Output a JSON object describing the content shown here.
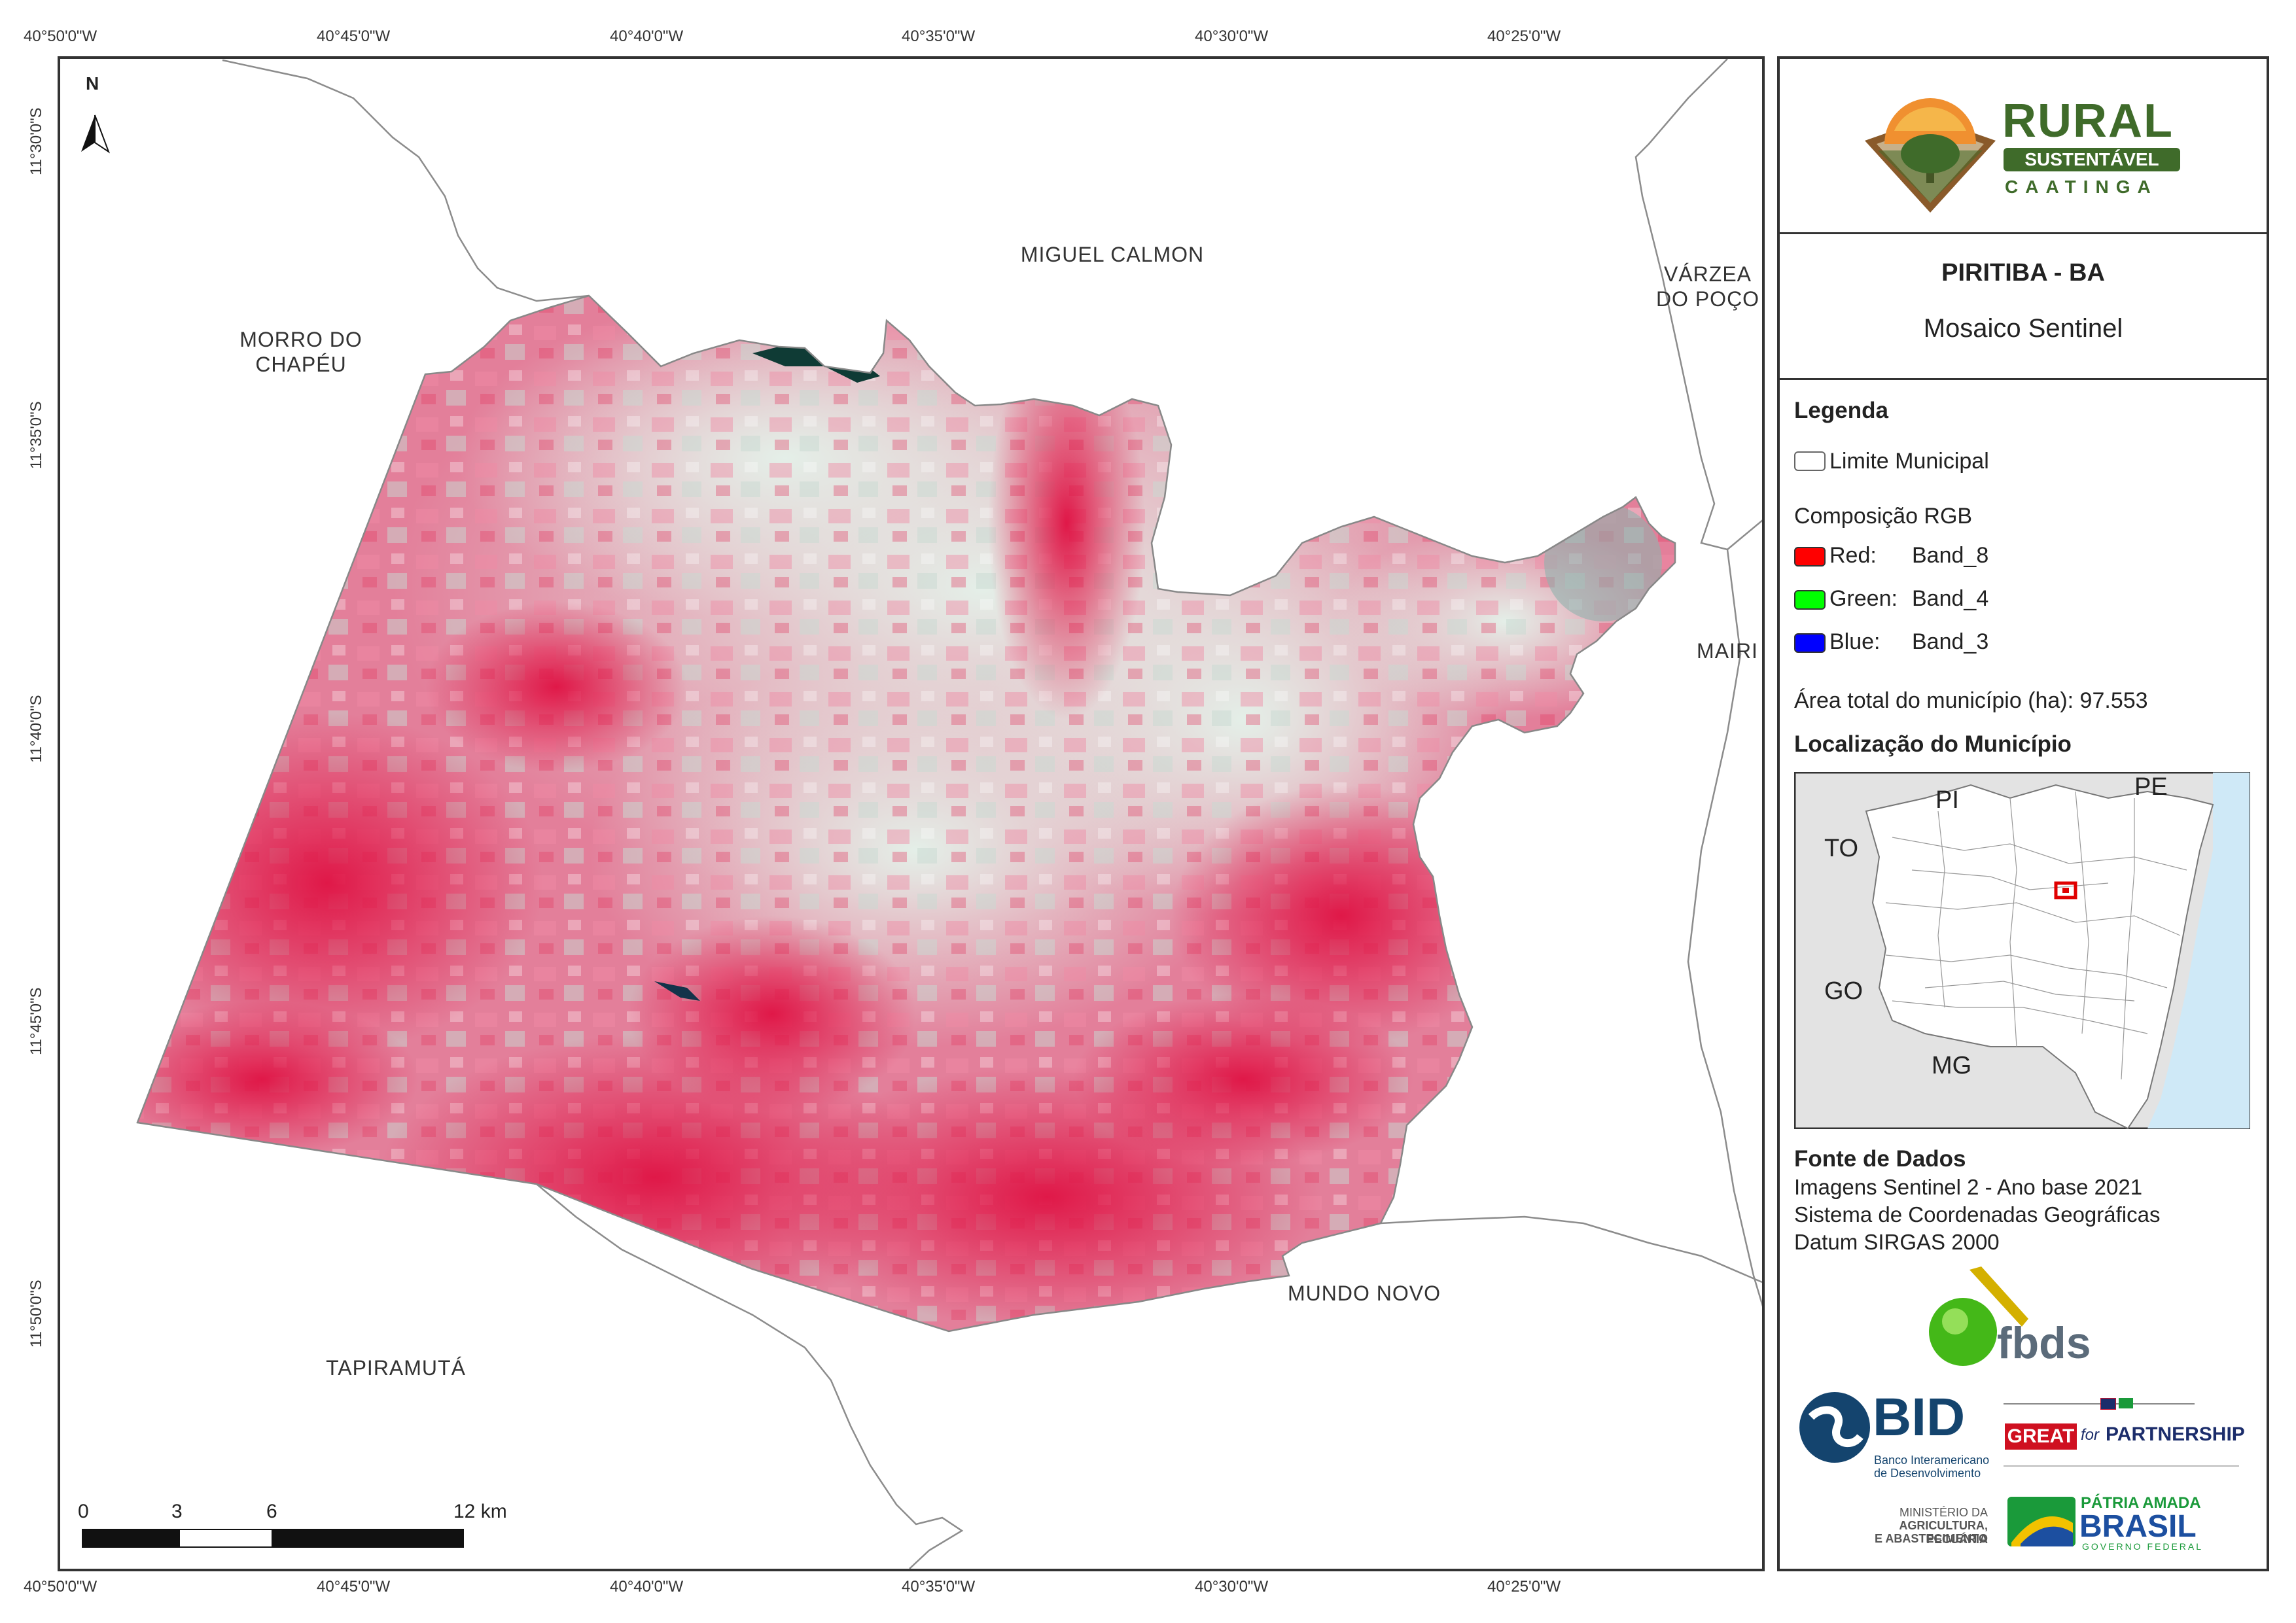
{
  "coords": {
    "top": [
      "40°50'0\"W",
      "40°45'0\"W",
      "40°40'0\"W",
      "40°35'0\"W",
      "40°30'0\"W",
      "40°25'0\"W"
    ],
    "bottom": [
      "40°50'0\"W",
      "40°45'0\"W",
      "40°40'0\"W",
      "40°35'0\"W",
      "40°30'0\"W",
      "40°25'0\"W"
    ],
    "left": [
      "11°30'0\"S",
      "11°35'0\"S",
      "11°40'0\"S",
      "11°45'0\"S",
      "11°50'0\"S"
    ]
  },
  "north_arrow": {
    "label": "N"
  },
  "places": {
    "miguel_calmon": "MIGUEL CALMON",
    "morro_line1": "MORRO DO",
    "morro_line2": "CHAPÉU",
    "varzea_line1": "VÁRZEA",
    "varzea_line2": "DO POÇO",
    "mairi": "MAIRI",
    "mundo_novo": "MUNDO NOVO",
    "tapiramuta": "TAPIRAMUTÁ"
  },
  "scale_bar": {
    "labels": [
      "0",
      "3",
      "6",
      "12 km"
    ]
  },
  "logo_rural": {
    "line1": "RURAL",
    "line2": "SUSTENTÁVEL",
    "line3": "CAATINGA"
  },
  "title": {
    "main": "PIRITIBA - BA",
    "sub": "Mosaico Sentinel"
  },
  "legend": {
    "title": "Legenda",
    "boundary_label": "Limite Municipal",
    "composition_title": "Composição RGB",
    "bands": [
      {
        "color": "#ff0000",
        "label": "Red:",
        "band": "Band_8"
      },
      {
        "color": "#00ff00",
        "label": "Green:",
        "band": "Band_4"
      },
      {
        "color": "#0000ff",
        "label": "Blue:",
        "band": "Band_3"
      }
    ],
    "area": "Área total do município (ha): 97.553"
  },
  "location": {
    "title": "Localização do Município",
    "labels": {
      "pi": "PI",
      "pe": "PE",
      "to": "TO",
      "go": "GO",
      "mg": "MG"
    }
  },
  "sources": {
    "title": "Fonte de Dados",
    "lines": [
      "Imagens Sentinel 2 - Ano base 2021",
      "Sistema de Coordenadas Geográficas",
      "Datum SIRGAS 2000"
    ]
  },
  "logos": {
    "fbds": "fbds",
    "bid": "BID",
    "bid_sub1": "Banco Interamericano",
    "bid_sub2": "de Desenvolvimento",
    "great": "GREAT",
    "great_for": "for",
    "partnership": "PARTNERSHIP",
    "ministerio1": "MINISTÉRIO DA",
    "ministerio2": "AGRICULTURA, PECUÁRIA",
    "ministerio3": "E ABASTECIMENTO",
    "patria": "PÁTRIA AMADA",
    "brasil": "BRASIL",
    "governo": "GOVERNO FEDERAL"
  },
  "colors": {
    "frame": "#333333",
    "vegetation": "#e8325a",
    "light": "#d9e6e2",
    "ocean": "#cfe9f7",
    "land": "#e3e3e3",
    "highlight": "#e00000"
  }
}
